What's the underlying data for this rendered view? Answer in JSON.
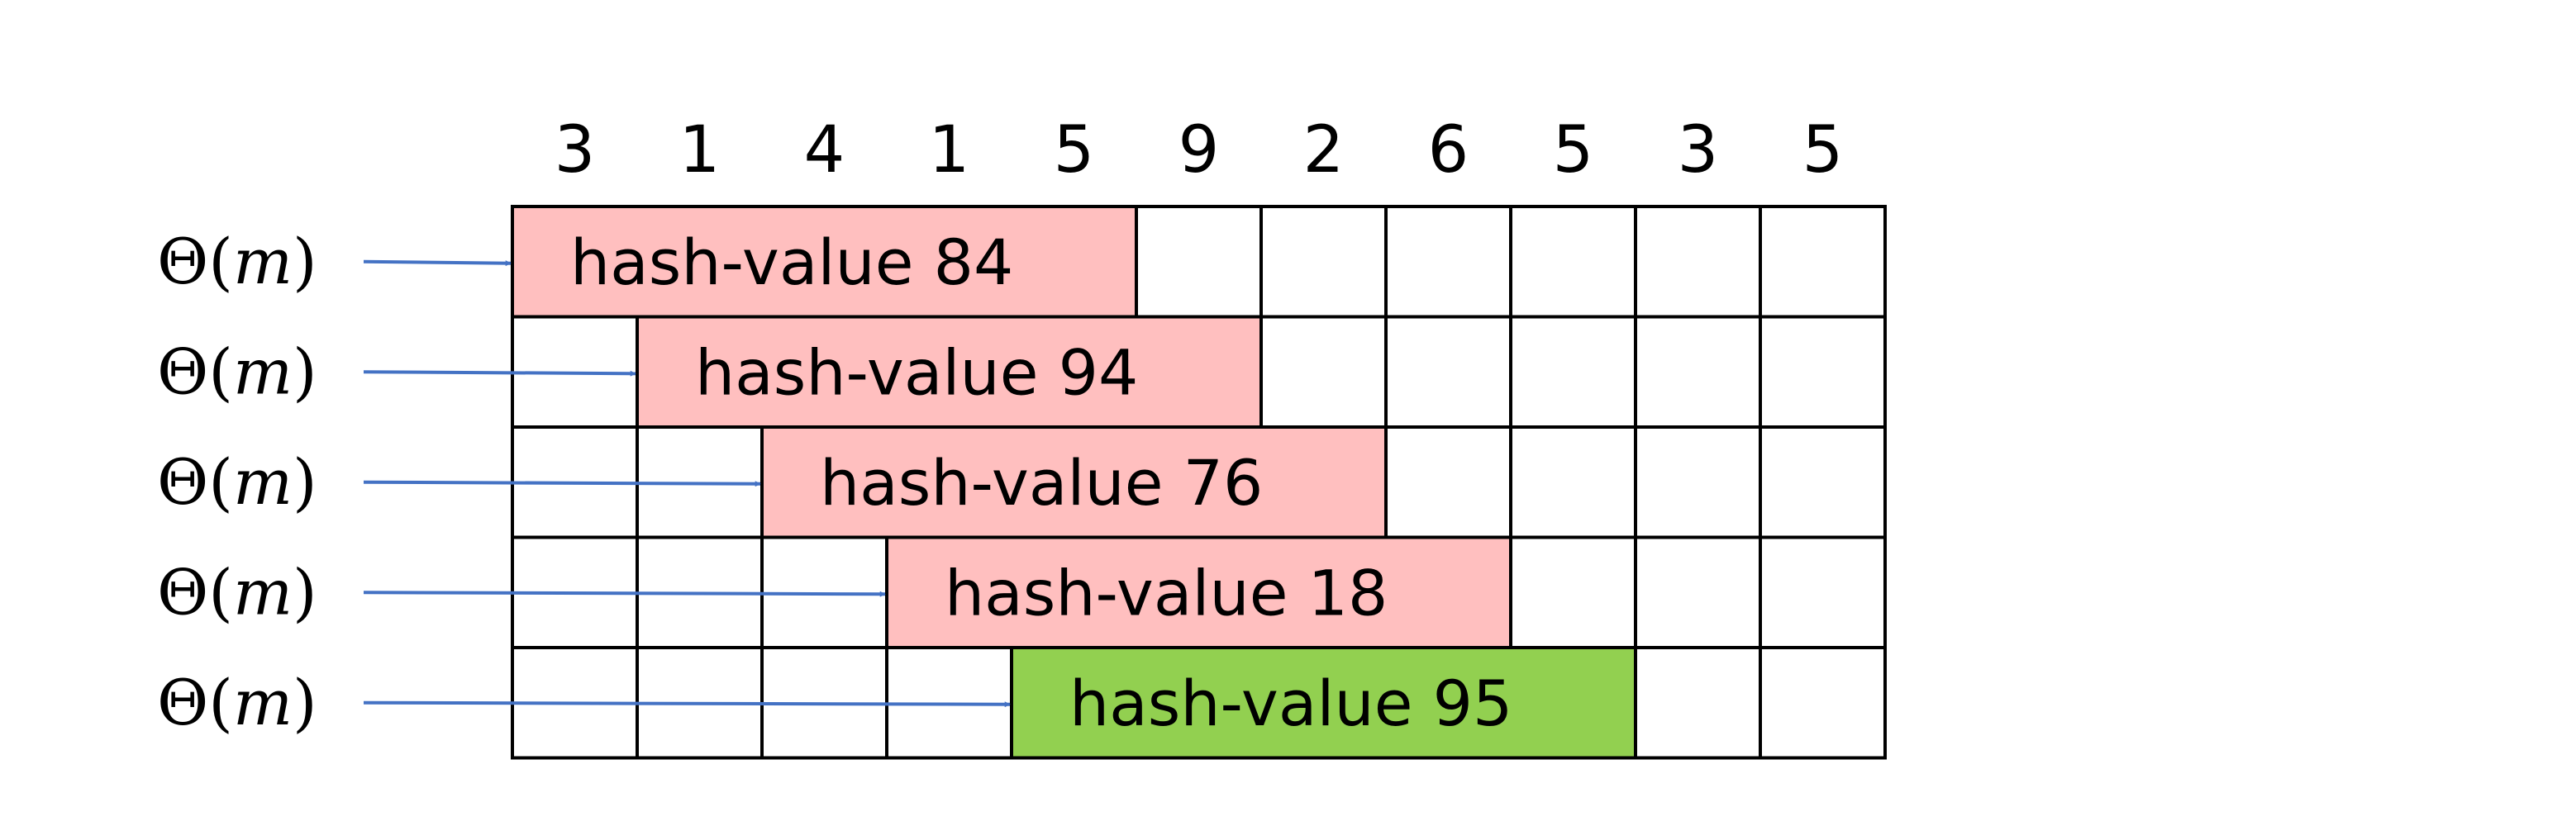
{
  "digits": [
    "3",
    "1",
    "4",
    "1",
    "5",
    "9",
    "2",
    "6",
    "5",
    "3",
    "5"
  ],
  "rows": [
    {
      "cost_label": "Θ(𝑚)",
      "hash_label": "hash-value 84",
      "window_start": 0,
      "highlight": "#ffbfbf"
    },
    {
      "cost_label": "Θ(𝑚)",
      "hash_label": "hash-value 94",
      "window_start": 1,
      "highlight": "#ffbfbf"
    },
    {
      "cost_label": "Θ(𝑚)",
      "hash_label": "hash-value 76",
      "window_start": 2,
      "highlight": "#ffbfbf"
    },
    {
      "cost_label": "Θ(𝑚)",
      "hash_label": "hash-value 18",
      "window_start": 3,
      "highlight": "#ffbfbf"
    },
    {
      "cost_label": "Θ(𝑚)",
      "hash_label": "hash-value 95",
      "window_start": 4,
      "highlight": "#92d050"
    }
  ],
  "window_length": 5,
  "colors": {
    "arrow": "#4472c4",
    "grid": "#000000",
    "mismatch": "#ffbfbf",
    "match": "#92d050"
  }
}
